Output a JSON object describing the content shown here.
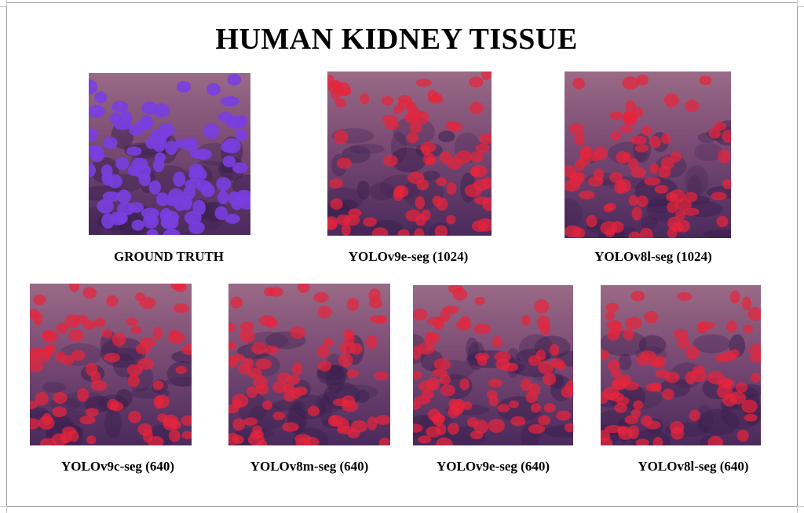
{
  "figure": {
    "title": "HUMAN KIDNEY TISSUE",
    "panels": [
      {
        "caption": "GROUND TRUTH",
        "overlay": "ground-truth",
        "mask_color": "#7a3ee0"
      },
      {
        "caption": "YOLOv9e-seg (1024)",
        "overlay": "prediction",
        "mask_color": "#e8243c"
      },
      {
        "caption": "YOLOv8l-seg (1024)",
        "overlay": "prediction",
        "mask_color": "#e8243c"
      },
      {
        "caption": "YOLOv9c-seg (640)",
        "overlay": "prediction",
        "mask_color": "#e8243c"
      },
      {
        "caption": "YOLOv8m-seg (640)",
        "overlay": "prediction",
        "mask_color": "#e8243c"
      },
      {
        "caption": "YOLOv9e-seg (640)",
        "overlay": "prediction",
        "mask_color": "#e8243c"
      },
      {
        "caption": "YOLOv8l-seg (640)",
        "overlay": "prediction",
        "mask_color": "#e8243c"
      }
    ]
  },
  "colors": {
    "tissue_light": "#9a6a86",
    "tissue_mid": "#7a4a74",
    "tissue_dark": "#4a2a5c"
  }
}
